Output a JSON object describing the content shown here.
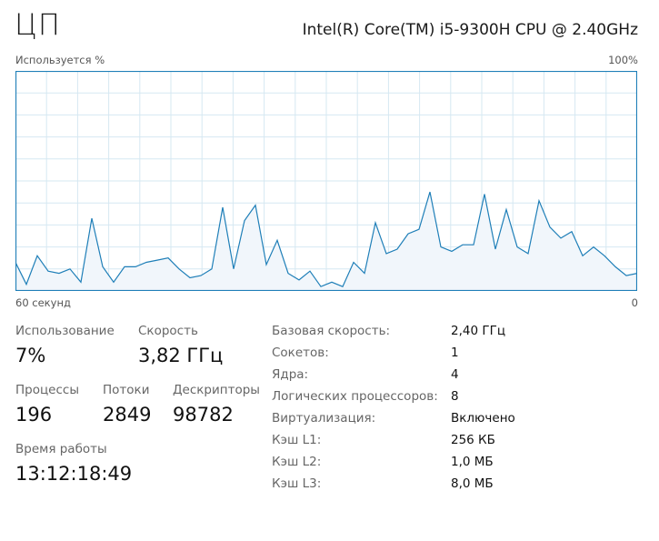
{
  "header": {
    "title": "ЦП",
    "cpu_name": "Intel(R) Core(TM) i5-9300H CPU @ 2.40GHz"
  },
  "graph": {
    "y_label": "Используется %",
    "y_max_label": "100%",
    "x_left_label": "60 секунд",
    "x_right_label": "0",
    "line_color": "#1f7fb8",
    "fill_color": "#f1f6fb",
    "grid_color": "#d6e8f2",
    "series_percent": [
      13,
      3,
      16,
      9,
      8,
      10,
      4,
      33,
      11,
      4,
      11,
      11,
      13,
      14,
      15,
      10,
      6,
      7,
      10,
      38,
      10,
      32,
      39,
      12,
      23,
      8,
      5,
      9,
      2,
      4,
      2,
      13,
      8,
      31,
      17,
      19,
      26,
      28,
      45,
      20,
      18,
      21,
      21,
      44,
      19,
      37,
      20,
      17,
      41,
      29,
      24,
      27,
      16,
      20,
      16,
      11,
      7,
      8
    ]
  },
  "stats": {
    "utilization": {
      "label": "Использование",
      "value": "7%"
    },
    "speed": {
      "label": "Скорость",
      "value": "3,82 ГГц"
    },
    "processes": {
      "label": "Процессы",
      "value": "196"
    },
    "threads": {
      "label": "Потоки",
      "value": "2849"
    },
    "handles": {
      "label": "Дескрипторы",
      "value": "98782"
    },
    "uptime": {
      "label": "Время работы",
      "value": "13:12:18:49"
    }
  },
  "details": [
    {
      "label": "Базовая скорость:",
      "value": "2,40 ГГц"
    },
    {
      "label": "Сокетов:",
      "value": "1"
    },
    {
      "label": "Ядра:",
      "value": "4"
    },
    {
      "label": "Логических процессоров:",
      "value": "8"
    },
    {
      "label": "Виртуализация:",
      "value": "Включено"
    },
    {
      "label": "Кэш L1:",
      "value": "256 КБ"
    },
    {
      "label": "Кэш L2:",
      "value": "1,0 МБ"
    },
    {
      "label": "Кэш L3:",
      "value": "8,0 МБ"
    }
  ]
}
